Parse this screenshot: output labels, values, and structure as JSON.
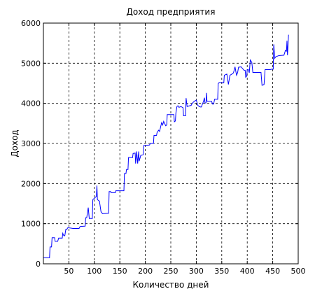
{
  "chart_data": {
    "type": "line",
    "title": "Доход предприятия",
    "xlabel": "Количество дней",
    "ylabel": "Доход",
    "xlim": [
      0,
      500
    ],
    "ylim": [
      0,
      6000
    ],
    "xticks": [
      50,
      100,
      150,
      200,
      250,
      300,
      350,
      400,
      450,
      500
    ],
    "yticks": [
      0,
      1000,
      2000,
      3000,
      4000,
      5000,
      6000
    ],
    "grid": true,
    "series": [
      {
        "color": "#0000ff",
        "points": [
          [
            0,
            150
          ],
          [
            12,
            150
          ],
          [
            13,
            420
          ],
          [
            16,
            420
          ],
          [
            17,
            650
          ],
          [
            22,
            650
          ],
          [
            23,
            560
          ],
          [
            28,
            560
          ],
          [
            30,
            640
          ],
          [
            37,
            640
          ],
          [
            38,
            760
          ],
          [
            40,
            700
          ],
          [
            42,
            700
          ],
          [
            44,
            860
          ],
          [
            46,
            860
          ],
          [
            48,
            900
          ],
          [
            54,
            890
          ],
          [
            58,
            880
          ],
          [
            70,
            880
          ],
          [
            72,
            930
          ],
          [
            82,
            940
          ],
          [
            83,
            1150
          ],
          [
            85,
            1150
          ],
          [
            88,
            1400
          ],
          [
            90,
            1130
          ],
          [
            96,
            1130
          ],
          [
            97,
            1600
          ],
          [
            104,
            1680
          ],
          [
            105,
            1950
          ],
          [
            106,
            1600
          ],
          [
            110,
            1560
          ],
          [
            113,
            1300
          ],
          [
            116,
            1250
          ],
          [
            128,
            1260
          ],
          [
            129,
            1800
          ],
          [
            132,
            1800
          ],
          [
            133,
            1770
          ],
          [
            141,
            1770
          ],
          [
            142,
            1820
          ],
          [
            158,
            1820
          ],
          [
            159,
            2250
          ],
          [
            162,
            2250
          ],
          [
            163,
            2350
          ],
          [
            166,
            2350
          ],
          [
            167,
            2650
          ],
          [
            175,
            2650
          ],
          [
            176,
            2750
          ],
          [
            180,
            2760
          ],
          [
            181,
            2500
          ],
          [
            183,
            2800
          ],
          [
            185,
            2500
          ],
          [
            187,
            2800
          ],
          [
            188,
            2560
          ],
          [
            191,
            2700
          ],
          [
            196,
            2720
          ],
          [
            197,
            2950
          ],
          [
            208,
            2960
          ],
          [
            210,
            3000
          ],
          [
            216,
            3000
          ],
          [
            217,
            3200
          ],
          [
            222,
            3200
          ],
          [
            223,
            3270
          ],
          [
            226,
            3330
          ],
          [
            228,
            3300
          ],
          [
            232,
            3520
          ],
          [
            234,
            3460
          ],
          [
            236,
            3550
          ],
          [
            240,
            3440
          ],
          [
            242,
            3460
          ],
          [
            243,
            3720
          ],
          [
            256,
            3720
          ],
          [
            257,
            3540
          ],
          [
            259,
            3560
          ],
          [
            260,
            3760
          ],
          [
            262,
            3920
          ],
          [
            264,
            3940
          ],
          [
            266,
            3900
          ],
          [
            270,
            3920
          ],
          [
            274,
            3890
          ],
          [
            275,
            3690
          ],
          [
            279,
            3690
          ],
          [
            280,
            4130
          ],
          [
            282,
            3920
          ],
          [
            290,
            3950
          ],
          [
            292,
            4000
          ],
          [
            296,
            4050
          ],
          [
            300,
            4080
          ],
          [
            303,
            3950
          ],
          [
            306,
            3920
          ],
          [
            308,
            3910
          ],
          [
            310,
            3910
          ],
          [
            312,
            3980
          ],
          [
            314,
            4040
          ],
          [
            316,
            4140
          ],
          [
            317,
            4010
          ],
          [
            319,
            4010
          ],
          [
            320,
            4260
          ],
          [
            321,
            4050
          ],
          [
            330,
            4050
          ],
          [
            332,
            3980
          ],
          [
            334,
            3980
          ],
          [
            336,
            4100
          ],
          [
            342,
            4100
          ],
          [
            343,
            4490
          ],
          [
            345,
            4520
          ],
          [
            354,
            4510
          ],
          [
            355,
            4700
          ],
          [
            360,
            4730
          ],
          [
            363,
            4470
          ],
          [
            366,
            4700
          ],
          [
            370,
            4730
          ],
          [
            373,
            4760
          ],
          [
            376,
            4910
          ],
          [
            379,
            4700
          ],
          [
            381,
            4760
          ],
          [
            383,
            4900
          ],
          [
            388,
            4910
          ],
          [
            394,
            4820
          ],
          [
            396,
            4820
          ],
          [
            397,
            4650
          ],
          [
            399,
            4680
          ],
          [
            400,
            4840
          ],
          [
            402,
            4840
          ],
          [
            404,
            4760
          ],
          [
            406,
            5080
          ],
          [
            409,
            5020
          ],
          [
            411,
            4770
          ],
          [
            413,
            4770
          ],
          [
            427,
            4770
          ],
          [
            429,
            4450
          ],
          [
            433,
            4470
          ],
          [
            435,
            4840
          ],
          [
            445,
            4840
          ],
          [
            448,
            4850
          ],
          [
            451,
            4850
          ],
          [
            452,
            5470
          ],
          [
            454,
            5120
          ],
          [
            456,
            5160
          ],
          [
            462,
            5190
          ],
          [
            472,
            5200
          ],
          [
            475,
            5320
          ],
          [
            477,
            5300
          ],
          [
            478,
            5560
          ],
          [
            479,
            5200
          ],
          [
            481,
            5710
          ]
        ]
      }
    ]
  }
}
